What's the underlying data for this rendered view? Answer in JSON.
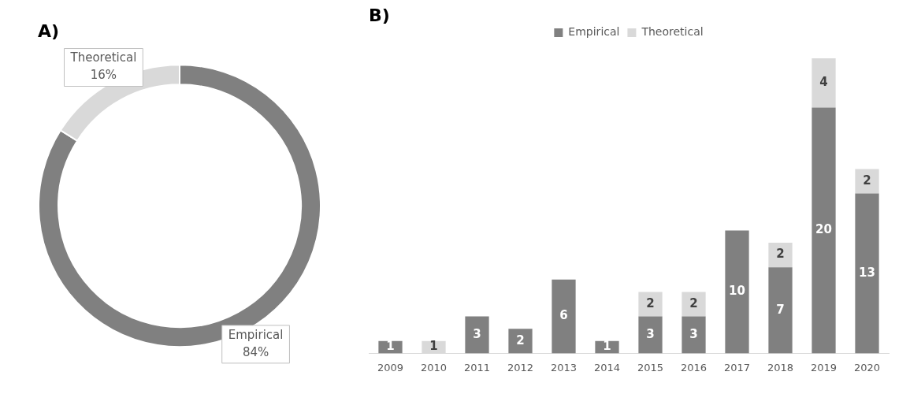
{
  "chart_data": [
    {
      "type": "donut",
      "title": "A)",
      "categories": [
        "Empirical",
        "Theoretical"
      ],
      "values": [
        84,
        16
      ],
      "value_labels": [
        "84%",
        "16%"
      ],
      "colors": [
        "#808080",
        "#d9d9d9"
      ],
      "legend": false
    },
    {
      "type": "bar",
      "title": "B)",
      "categories": [
        "2009",
        "2010",
        "2011",
        "2012",
        "2013",
        "2014",
        "2015",
        "2016",
        "2017",
        "2018",
        "2019",
        "2020"
      ],
      "stacked": true,
      "data_labels": true,
      "legend": "top",
      "tick_labels": "x",
      "series": [
        {
          "name": "Empirical",
          "color": "#808080",
          "values": [
            1,
            null,
            3,
            2,
            6,
            1,
            3,
            3,
            10,
            7,
            20,
            13
          ]
        },
        {
          "name": "Theoretical",
          "color": "#d9d9d9",
          "values": [
            null,
            1,
            null,
            null,
            null,
            null,
            2,
            2,
            null,
            2,
            4,
            2
          ]
        }
      ]
    }
  ]
}
